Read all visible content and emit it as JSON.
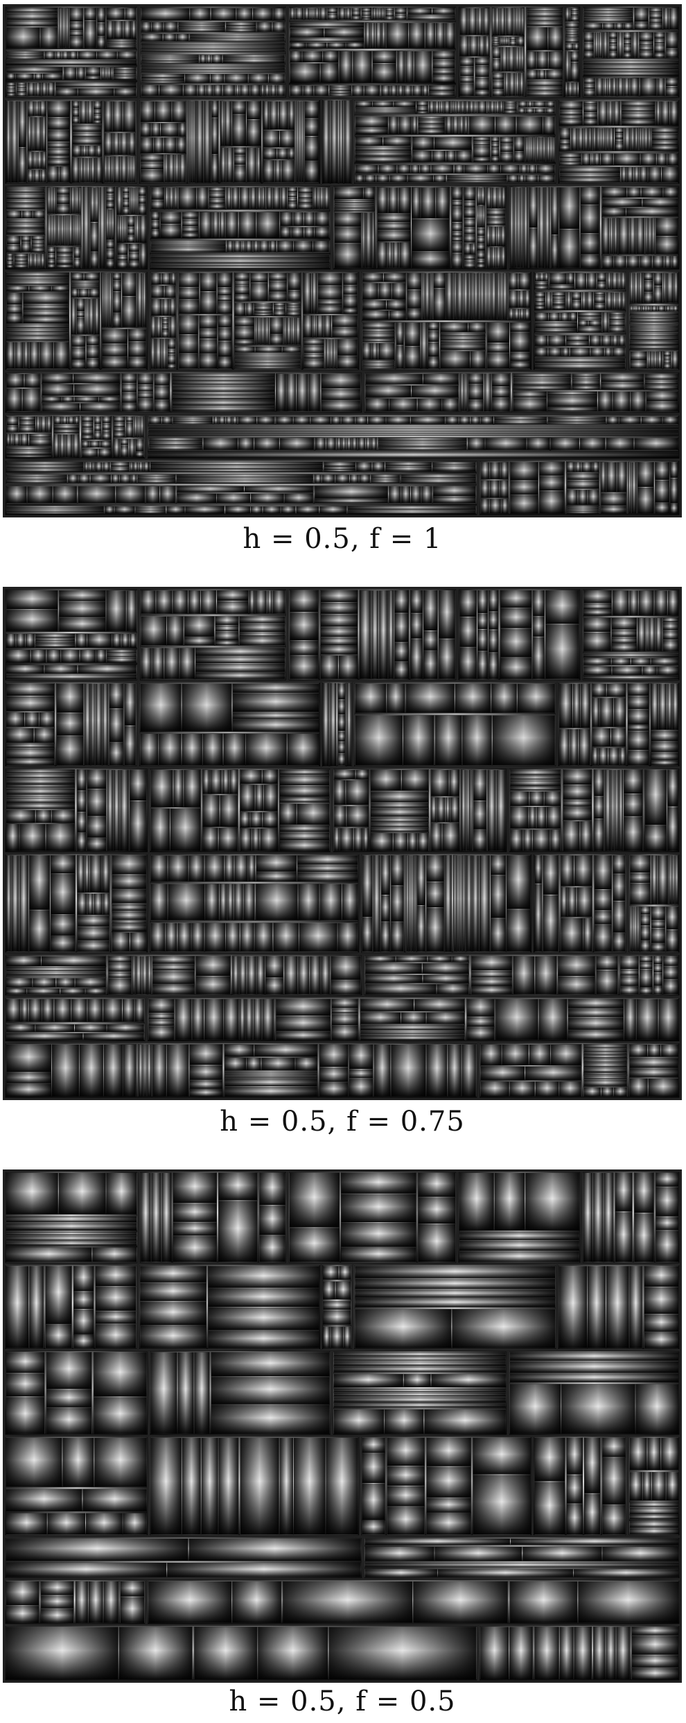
{
  "panels": [
    {
      "caption": "h = 0.5, f = 1",
      "h": 0.5,
      "f": 1
    },
    {
      "caption": "h = 0.5, f = 0.75",
      "h": 0.5,
      "f": 0.75
    },
    {
      "caption": "h = 0.5, f = 0.5",
      "h": 0.5,
      "f": 0.5
    }
  ]
}
